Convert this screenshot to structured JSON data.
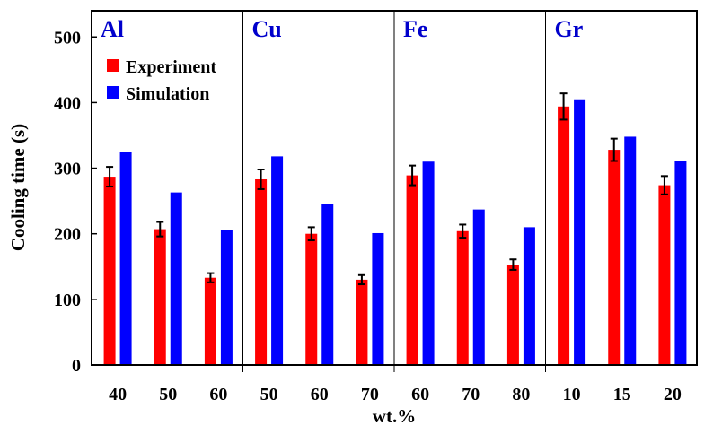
{
  "chart_data": {
    "type": "bar",
    "ylabel": "Cooling time (s)",
    "xlabel": "wt.%",
    "ylim": [
      0,
      540
    ],
    "yticks": [
      0,
      100,
      200,
      300,
      400,
      500
    ],
    "grid": false,
    "legend_placement": "top-left",
    "series_colors": {
      "Experiment": "#ff0000",
      "Simulation": "#0000ff"
    },
    "group_label_color": "#0000cc",
    "legend": [
      "Experiment",
      "Simulation"
    ],
    "groups": [
      {
        "label": "Al",
        "categories": [
          "40",
          "50",
          "60"
        ],
        "experiment": [
          287,
          207,
          133
        ],
        "experiment_error": [
          15,
          11,
          7
        ],
        "simulation": [
          324,
          263,
          206
        ]
      },
      {
        "label": "Cu",
        "categories": [
          "50",
          "60",
          "70"
        ],
        "experiment": [
          283,
          200,
          130
        ],
        "experiment_error": [
          15,
          10,
          7
        ],
        "simulation": [
          318,
          246,
          201
        ]
      },
      {
        "label": "Fe",
        "categories": [
          "60",
          "70",
          "80"
        ],
        "experiment": [
          289,
          204,
          153
        ],
        "experiment_error": [
          15,
          10,
          8
        ],
        "simulation": [
          310,
          237,
          210
        ]
      },
      {
        "label": "Gr",
        "categories": [
          "10",
          "15",
          "20"
        ],
        "experiment": [
          394,
          328,
          274
        ],
        "experiment_error": [
          20,
          17,
          14
        ],
        "simulation": [
          405,
          348,
          311
        ]
      }
    ]
  }
}
